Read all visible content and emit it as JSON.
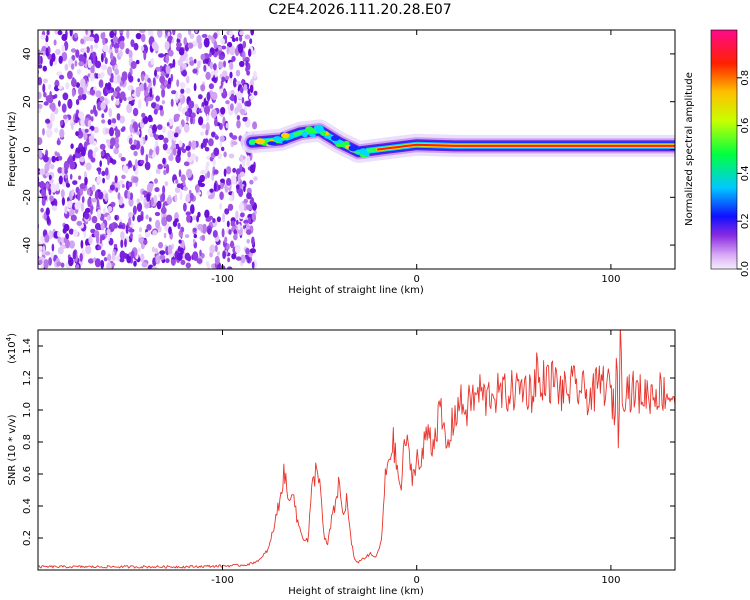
{
  "title": "C2E4.2026.111.20.28.E07",
  "chart_data": [
    {
      "type": "heatmap",
      "xlabel": "Height of straight line (km)",
      "ylabel": "Frequency (Hz)",
      "xlim": [
        -195,
        133
      ],
      "ylim": [
        -50,
        50
      ],
      "xticks": [
        -100,
        0,
        100
      ],
      "yticks": [
        -40,
        -20,
        0,
        20,
        40
      ],
      "colorbar": {
        "label": "Normalized spectral amplitude",
        "range": [
          0,
          1
        ],
        "ticks": [
          "0.0",
          "0.2",
          "0.4",
          "0.6",
          "0.8"
        ],
        "tick_values": [
          0.0,
          0.2,
          0.4,
          0.6,
          0.8
        ]
      },
      "noise_region_x": [
        -195,
        -85
      ],
      "ridge": [
        {
          "x": -85,
          "y": 3
        },
        {
          "x": -70,
          "y": 4
        },
        {
          "x": -60,
          "y": 7
        },
        {
          "x": -50,
          "y": 8
        },
        {
          "x": -40,
          "y": 3
        },
        {
          "x": -30,
          "y": -1
        },
        {
          "x": -20,
          "y": 0
        },
        {
          "x": -10,
          "y": 1
        },
        {
          "x": 0,
          "y": 2
        },
        {
          "x": 20,
          "y": 1.5
        },
        {
          "x": 60,
          "y": 1.5
        },
        {
          "x": 100,
          "y": 1.5
        },
        {
          "x": 133,
          "y": 1.5
        }
      ]
    },
    {
      "type": "line",
      "xlabel": "Height of straight line (km)",
      "ylabel": "SNR (10 * v/v)",
      "yscale_label": "(x10",
      "yscale_exponent": "4",
      "yscale_suffix": ")",
      "xlim": [
        -195,
        133
      ],
      "ylim": [
        0,
        1.5
      ],
      "xticks": [
        -100,
        0,
        100
      ],
      "yticks": [
        "0.2",
        "0.4",
        "0.6",
        "0.8",
        "1.0",
        "1.2",
        "1.4"
      ],
      "ytick_values": [
        0.2,
        0.4,
        0.6,
        0.8,
        1.0,
        1.2,
        1.4
      ],
      "series": [
        {
          "name": "SNR",
          "color": "#e8342c",
          "x": [
            -195,
            -180,
            -160,
            -140,
            -120,
            -100,
            -90,
            -85,
            -80,
            -76,
            -72,
            -70,
            -68,
            -66,
            -64,
            -62,
            -60,
            -58,
            -56,
            -54,
            -52,
            -50,
            -48,
            -46,
            -44,
            -42,
            -40,
            -38,
            -36,
            -34,
            -32,
            -30,
            -28,
            -26,
            -24,
            -22,
            -20,
            -18,
            -16,
            -14,
            -12,
            -10,
            -8,
            -6,
            -4,
            -2,
            0,
            2,
            4,
            6,
            8,
            10,
            12,
            14,
            16,
            18,
            20,
            22,
            24,
            26,
            28,
            30,
            32,
            34,
            36,
            38,
            40,
            45,
            50,
            55,
            60,
            62,
            64,
            66,
            68,
            70,
            75,
            80,
            85,
            90,
            95,
            100,
            102,
            103,
            104,
            105,
            106,
            108,
            110,
            115,
            120,
            125,
            130,
            133
          ],
          "values": [
            0.02,
            0.02,
            0.02,
            0.02,
            0.02,
            0.025,
            0.03,
            0.04,
            0.07,
            0.14,
            0.35,
            0.48,
            0.62,
            0.4,
            0.55,
            0.33,
            0.25,
            0.2,
            0.18,
            0.5,
            0.62,
            0.6,
            0.22,
            0.15,
            0.3,
            0.4,
            0.55,
            0.33,
            0.45,
            0.2,
            0.06,
            0.05,
            0.07,
            0.08,
            0.1,
            0.08,
            0.1,
            0.2,
            0.6,
            0.72,
            0.8,
            0.62,
            0.5,
            0.85,
            0.7,
            0.58,
            0.72,
            0.62,
            0.8,
            0.9,
            0.78,
            0.88,
            1.0,
            0.85,
            0.75,
            0.9,
            0.98,
            1.05,
            1.02,
            1.0,
            1.08,
            1.06,
            1.12,
            1.1,
            1.05,
            1.12,
            1.1,
            1.1,
            1.12,
            1.15,
            1.1,
            1.3,
            1.05,
            1.25,
            1.15,
            1.2,
            1.1,
            1.15,
            1.12,
            1.08,
            1.18,
            1.12,
            0.95,
            1.4,
            0.72,
            1.55,
            1.1,
            1.15,
            1.12,
            1.1,
            1.1,
            1.12,
            1.1,
            1.08
          ]
        }
      ]
    }
  ]
}
